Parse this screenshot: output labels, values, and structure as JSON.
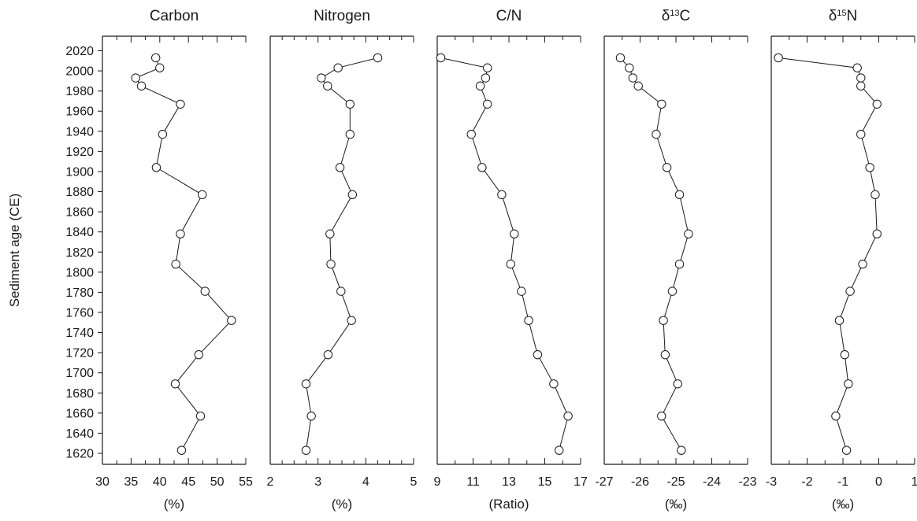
{
  "ylabel": "Sediment age (CE)",
  "y_ticks": [
    2020,
    2000,
    1980,
    1960,
    1940,
    1920,
    1900,
    1880,
    1860,
    1840,
    1820,
    1800,
    1780,
    1760,
    1740,
    1720,
    1700,
    1680,
    1660,
    1640,
    1620
  ],
  "ylim": [
    1620,
    2020
  ],
  "colors": {
    "ink": "#1a1a1a",
    "marker_fill": "#ffffff"
  },
  "chart_data": [
    {
      "type": "line",
      "title": "Carbon",
      "title_parts": [
        {
          "text": "Carbon"
        }
      ],
      "xlabel": "(%)",
      "xlim": [
        30,
        55
      ],
      "x_ticks": [
        30,
        35,
        40,
        45,
        50,
        55
      ],
      "x_tick_labels": [
        "30",
        "35",
        "40",
        "45",
        "50",
        "55"
      ],
      "minor_step": 2.5,
      "points": [
        {
          "age": 2013,
          "value": 39.3
        },
        {
          "age": 2003,
          "value": 40.0
        },
        {
          "age": 1993,
          "value": 35.8
        },
        {
          "age": 1985,
          "value": 36.8
        },
        {
          "age": 1967,
          "value": 43.6
        },
        {
          "age": 1937,
          "value": 40.5
        },
        {
          "age": 1904,
          "value": 39.4
        },
        {
          "age": 1877,
          "value": 47.4
        },
        {
          "age": 1838,
          "value": 43.6
        },
        {
          "age": 1808,
          "value": 42.8
        },
        {
          "age": 1781,
          "value": 47.9
        },
        {
          "age": 1752,
          "value": 52.5
        },
        {
          "age": 1718,
          "value": 46.8
        },
        {
          "age": 1689,
          "value": 42.7
        },
        {
          "age": 1657,
          "value": 47.1
        },
        {
          "age": 1623,
          "value": 43.8
        }
      ]
    },
    {
      "type": "line",
      "title": "Nitrogen",
      "title_parts": [
        {
          "text": "Nitrogen"
        }
      ],
      "xlabel": "(%)",
      "xlim": [
        2,
        5
      ],
      "x_ticks": [
        2,
        3,
        4,
        5
      ],
      "x_tick_labels": [
        "2",
        "3",
        "4",
        "5"
      ],
      "minor_step": 0.25,
      "points": [
        {
          "age": 2013,
          "value": 4.25
        },
        {
          "age": 2003,
          "value": 3.42
        },
        {
          "age": 1993,
          "value": 3.07
        },
        {
          "age": 1985,
          "value": 3.2
        },
        {
          "age": 1967,
          "value": 3.67
        },
        {
          "age": 1937,
          "value": 3.67
        },
        {
          "age": 1904,
          "value": 3.46
        },
        {
          "age": 1877,
          "value": 3.72
        },
        {
          "age": 1838,
          "value": 3.25
        },
        {
          "age": 1808,
          "value": 3.27
        },
        {
          "age": 1781,
          "value": 3.48
        },
        {
          "age": 1752,
          "value": 3.7
        },
        {
          "age": 1718,
          "value": 3.21
        },
        {
          "age": 1689,
          "value": 2.75
        },
        {
          "age": 1657,
          "value": 2.86
        },
        {
          "age": 1623,
          "value": 2.75
        }
      ]
    },
    {
      "type": "line",
      "title": "C/N",
      "title_parts": [
        {
          "text": "C/N"
        }
      ],
      "xlabel": "(Ratio)",
      "xlim": [
        9,
        17
      ],
      "x_ticks": [
        9,
        11,
        13,
        15,
        17
      ],
      "x_tick_labels": [
        "9",
        "11",
        "13",
        "15",
        "17"
      ],
      "minor_step": 1,
      "points": [
        {
          "age": 2013,
          "value": 9.2
        },
        {
          "age": 2003,
          "value": 11.8
        },
        {
          "age": 1993,
          "value": 11.7
        },
        {
          "age": 1985,
          "value": 11.4
        },
        {
          "age": 1967,
          "value": 11.8
        },
        {
          "age": 1937,
          "value": 10.9
        },
        {
          "age": 1904,
          "value": 11.5
        },
        {
          "age": 1877,
          "value": 12.6
        },
        {
          "age": 1838,
          "value": 13.3
        },
        {
          "age": 1808,
          "value": 13.1
        },
        {
          "age": 1781,
          "value": 13.7
        },
        {
          "age": 1752,
          "value": 14.1
        },
        {
          "age": 1718,
          "value": 14.6
        },
        {
          "age": 1689,
          "value": 15.5
        },
        {
          "age": 1657,
          "value": 16.3
        },
        {
          "age": 1623,
          "value": 15.8
        }
      ]
    },
    {
      "type": "line",
      "title": "δ13C",
      "title_parts": [
        {
          "text": "δ"
        },
        {
          "text": "13",
          "sup": true
        },
        {
          "text": "C"
        }
      ],
      "xlabel": "(‰)",
      "xlim": [
        -27,
        -23
      ],
      "x_ticks": [
        -27,
        -26,
        -25,
        -24,
        -23
      ],
      "x_tick_labels": [
        "-27",
        "-26",
        "-25",
        "-24",
        "-23"
      ],
      "minor_step": 0.5,
      "points": [
        {
          "age": 2013,
          "value": -26.55
        },
        {
          "age": 2003,
          "value": -26.3
        },
        {
          "age": 1993,
          "value": -26.2
        },
        {
          "age": 1985,
          "value": -26.05
        },
        {
          "age": 1967,
          "value": -25.4
        },
        {
          "age": 1937,
          "value": -25.55
        },
        {
          "age": 1904,
          "value": -25.25
        },
        {
          "age": 1877,
          "value": -24.9
        },
        {
          "age": 1838,
          "value": -24.65
        },
        {
          "age": 1808,
          "value": -24.9
        },
        {
          "age": 1781,
          "value": -25.1
        },
        {
          "age": 1752,
          "value": -25.35
        },
        {
          "age": 1718,
          "value": -25.3
        },
        {
          "age": 1689,
          "value": -24.95
        },
        {
          "age": 1657,
          "value": -25.4
        },
        {
          "age": 1623,
          "value": -24.85
        }
      ]
    },
    {
      "type": "line",
      "title": "δ15N",
      "title_parts": [
        {
          "text": "δ"
        },
        {
          "text": "15",
          "sup": true
        },
        {
          "text": "N"
        }
      ],
      "xlabel": "(‰)",
      "xlim": [
        -3,
        1
      ],
      "x_ticks": [
        -3,
        -2,
        -1,
        0,
        1
      ],
      "x_tick_labels": [
        "-3",
        "-2",
        "-1",
        "0",
        "1"
      ],
      "minor_step": 0.5,
      "points": [
        {
          "age": 2013,
          "value": -2.8
        },
        {
          "age": 2003,
          "value": -0.6
        },
        {
          "age": 1993,
          "value": -0.5
        },
        {
          "age": 1985,
          "value": -0.5
        },
        {
          "age": 1967,
          "value": -0.05
        },
        {
          "age": 1937,
          "value": -0.5
        },
        {
          "age": 1904,
          "value": -0.25
        },
        {
          "age": 1877,
          "value": -0.1
        },
        {
          "age": 1838,
          "value": -0.05
        },
        {
          "age": 1808,
          "value": -0.45
        },
        {
          "age": 1781,
          "value": -0.8
        },
        {
          "age": 1752,
          "value": -1.1
        },
        {
          "age": 1718,
          "value": -0.95
        },
        {
          "age": 1689,
          "value": -0.85
        },
        {
          "age": 1657,
          "value": -1.2
        },
        {
          "age": 1623,
          "value": -0.9
        }
      ]
    }
  ]
}
